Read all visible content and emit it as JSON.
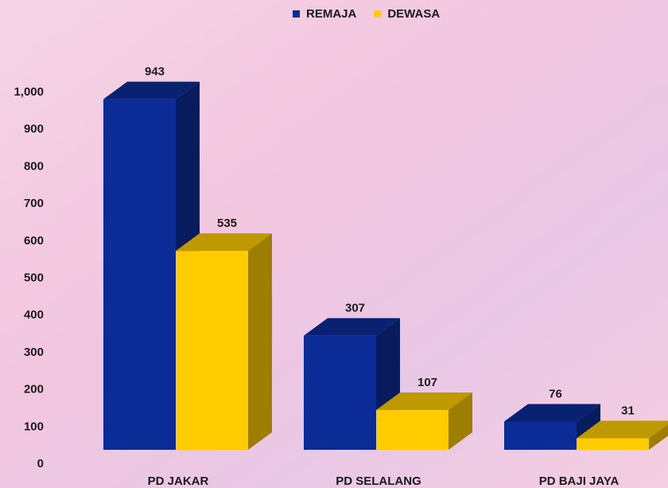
{
  "chart_data": {
    "type": "bar3d",
    "categories": [
      "PD JAKAR",
      "PD SELALANG",
      "PD BAJI JAYA"
    ],
    "series": [
      {
        "name": "REMAJA",
        "color": "#0b2c96",
        "values": [
          943,
          307,
          76
        ]
      },
      {
        "name": "DEWASA",
        "color": "#ffcc00",
        "values": [
          535,
          107,
          31
        ]
      }
    ],
    "ylim": [
      0,
      1000
    ],
    "yticks": [
      0,
      100,
      200,
      300,
      400,
      500,
      600,
      700,
      800,
      900,
      {
        "value": 1000,
        "label": "1,000"
      }
    ],
    "legend": "top"
  }
}
